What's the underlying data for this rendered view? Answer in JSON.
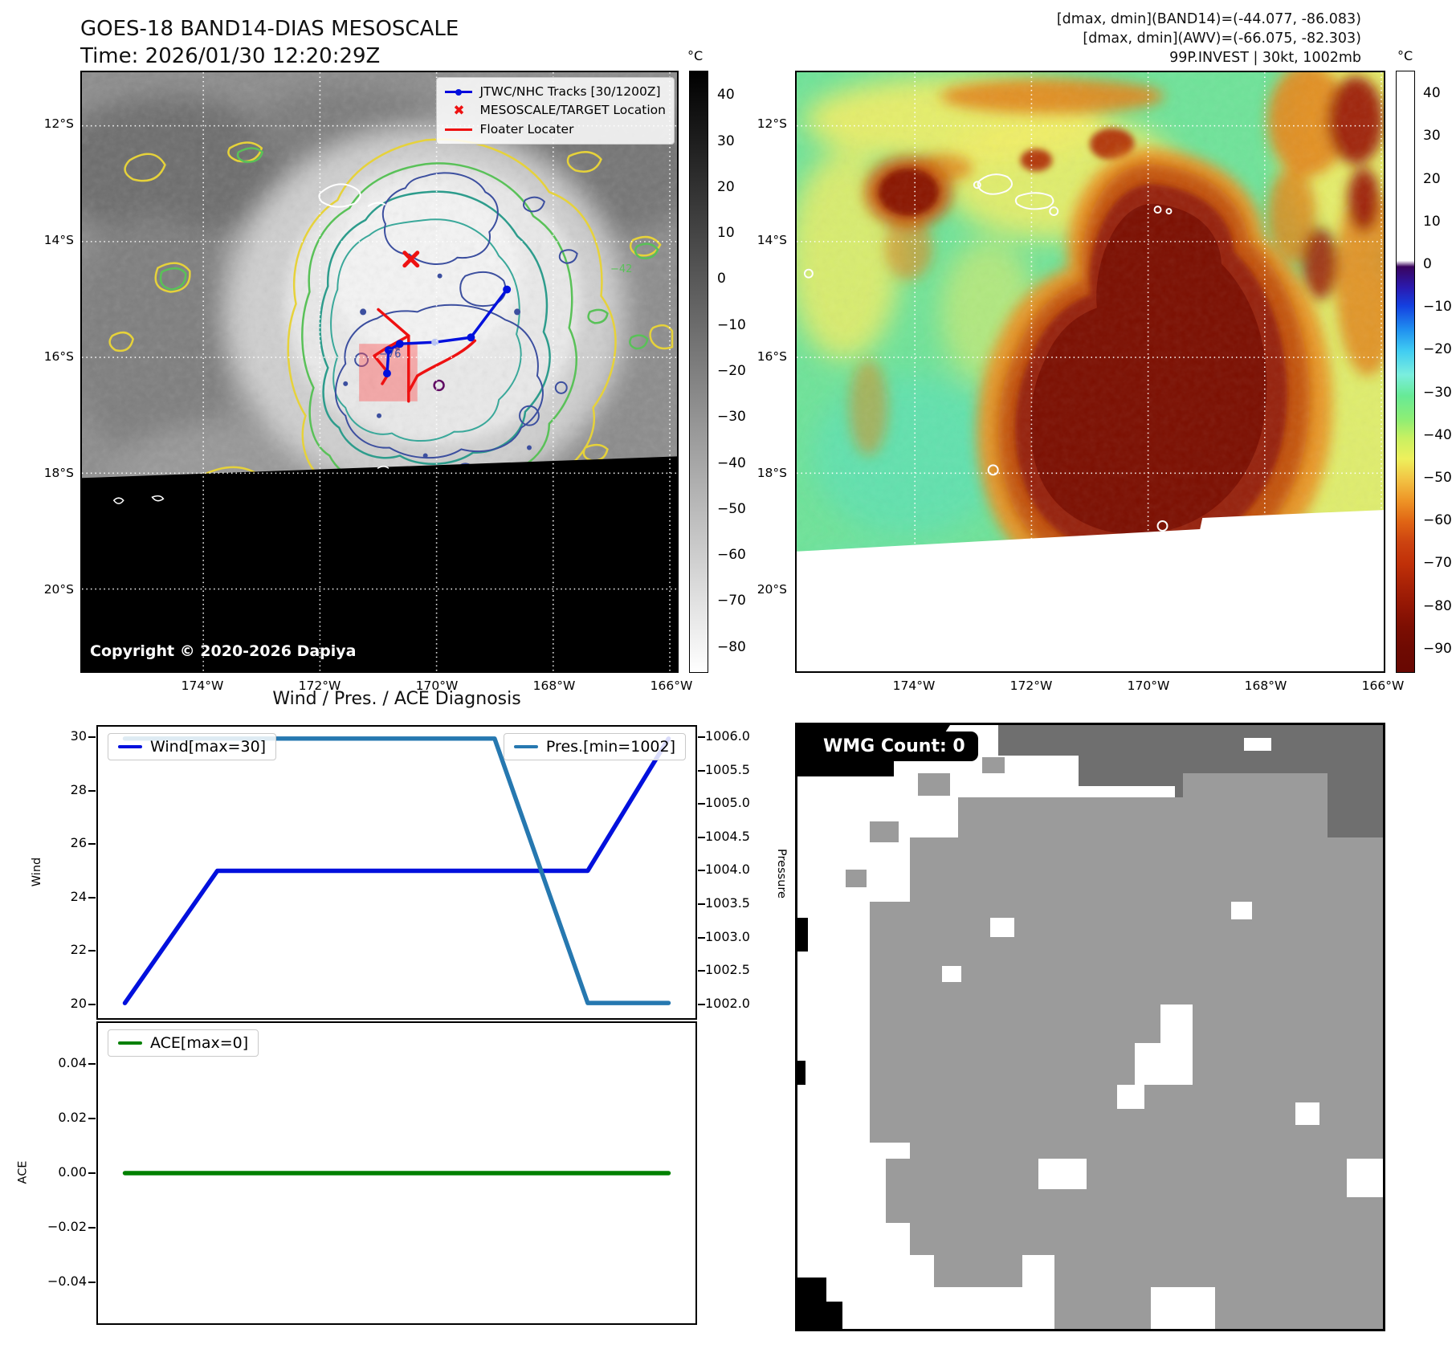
{
  "left_panel": {
    "title": "GOES-18 BAND14-DIAS MESOSCALE",
    "time_line": "Time: 2026/01/30 12:20:29Z",
    "legend": {
      "tracks": "JTWC/NHC Tracks [30/1200Z]",
      "target": "MESOSCALE/TARGET Location",
      "floater": "Floater Locater"
    },
    "copyright": "Copyright © 2020-2026 Dapiya",
    "contour_labels": {
      "inner": "−76",
      "outer": "−42"
    },
    "colorbar": {
      "unit": "°C",
      "ticks": [
        40,
        30,
        20,
        10,
        0,
        -10,
        -20,
        -30,
        -40,
        -50,
        -60,
        -70,
        -80
      ]
    },
    "lat_ticks": [
      "12°S",
      "14°S",
      "16°S",
      "18°S",
      "20°S"
    ],
    "lon_ticks": [
      "174°W",
      "172°W",
      "170°W",
      "168°W",
      "166°W"
    ]
  },
  "right_panel": {
    "header_line1": "[dmax, dmin](BAND14)=(-44.077, -86.083)",
    "header_line2": "[dmax, dmin](AWV)=(-66.075, -82.303)",
    "header_line3": "99P.INVEST | 30kt, 1002mb",
    "colorbar": {
      "unit": "°C",
      "ticks": [
        40,
        30,
        20,
        10,
        0,
        -10,
        -20,
        -30,
        -40,
        -50,
        -60,
        -70,
        -80,
        -90
      ]
    },
    "lat_ticks": [
      "12°S",
      "14°S",
      "16°S",
      "18°S",
      "20°S"
    ],
    "lon_ticks": [
      "174°W",
      "172°W",
      "170°W",
      "168°W",
      "166°W"
    ]
  },
  "diagnosis": {
    "title": "Wind / Pres. / ACE Diagnosis",
    "wind_legend": "Wind[max=30]",
    "pres_legend": "Pres.[min=1002]",
    "ace_legend": "ACE[max=0]"
  },
  "wmg_panel": {
    "label": "WMG Count: 0"
  },
  "accent_colors": {
    "wind": "#0010dd",
    "pressure": "#2678b0",
    "ace": "#008000",
    "track": "#0010dd",
    "floater": "#ee1111"
  },
  "chart_data": [
    {
      "type": "line",
      "title": "Wind / Pres. / ACE Diagnosis",
      "x_range": [
        0,
        8
      ],
      "grid": false,
      "legend_position": "upper-left / upper-right",
      "series": [
        {
          "name": "Wind[max=30]",
          "color": "#0010dd",
          "axis": "left",
          "points": [
            [
              0,
              20
            ],
            [
              1.36,
              25
            ],
            [
              6.81,
              25
            ],
            [
              8,
              30
            ]
          ]
        },
        {
          "name": "Pres.[min=1002]",
          "color": "#2678b0",
          "axis": "right",
          "points": [
            [
              0,
              1006
            ],
            [
              5.44,
              1006
            ],
            [
              6.81,
              1002
            ],
            [
              8,
              1002
            ]
          ]
        }
      ],
      "left_axis": {
        "label": "Wind",
        "ticks": [
          20,
          22,
          24,
          26,
          28,
          30
        ],
        "range": [
          19.43,
          30.45
        ]
      },
      "right_axis": {
        "label": "Pressure",
        "ticks": [
          1002,
          1002.5,
          1003,
          1003.5,
          1004,
          1004.5,
          1005,
          1005.5,
          1006
        ],
        "range": [
          1001.77,
          1006.18
        ]
      }
    },
    {
      "type": "line",
      "x_range": [
        0,
        8
      ],
      "grid": false,
      "series": [
        {
          "name": "ACE[max=0]",
          "color": "#008000",
          "axis": "left",
          "points": [
            [
              0,
              0
            ],
            [
              8,
              0
            ]
          ]
        }
      ],
      "left_axis": {
        "label": "ACE",
        "ticks": [
          0.04,
          0.02,
          0,
          -0.02,
          -0.04
        ],
        "range": [
          -0.0555,
          0.0555
        ]
      }
    }
  ]
}
